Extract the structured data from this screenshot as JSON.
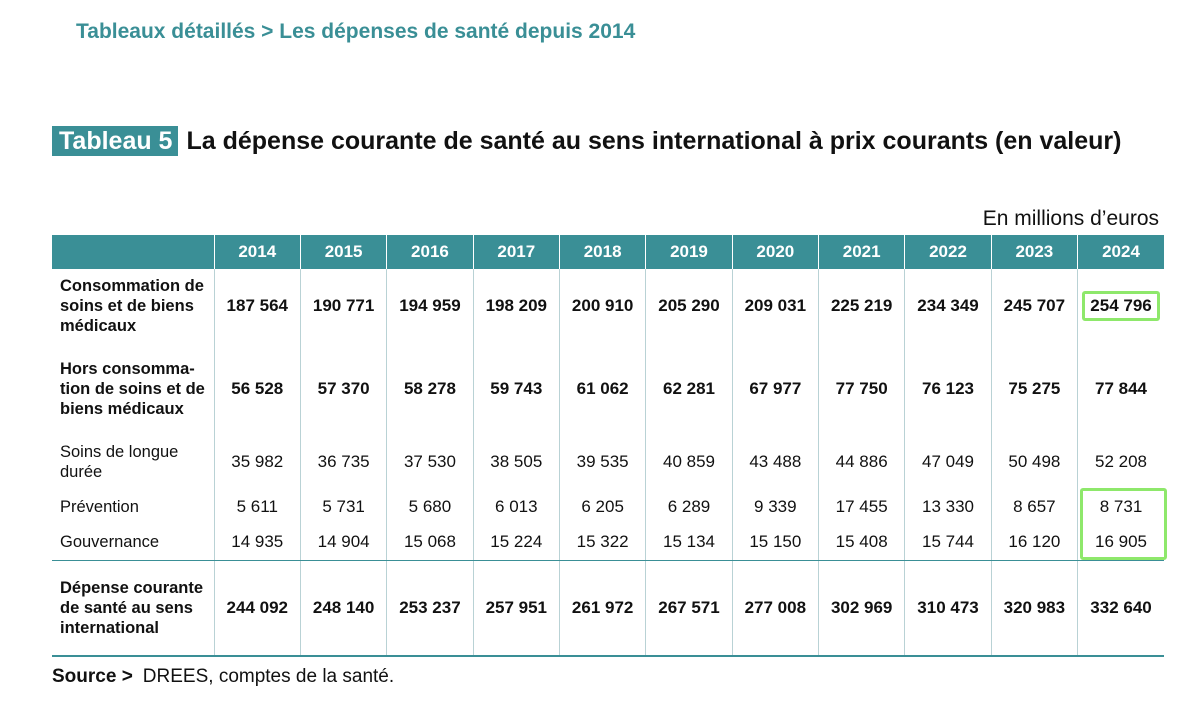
{
  "breadcrumb": "Tableaux détaillés > Les dépenses de santé depuis 2014",
  "title": {
    "badge": "Tableau 5",
    "text": "La dépense courante de santé au sens international à prix courants (en valeur)"
  },
  "unit": "En millions d’euros",
  "table": {
    "years": [
      "2014",
      "2015",
      "2016",
      "2017",
      "2018",
      "2019",
      "2020",
      "2021",
      "2022",
      "2023",
      "2024"
    ],
    "rows": [
      {
        "label": "Consommation de soins et de biens médicaux",
        "values": [
          "187 564",
          "190 771",
          "194 959",
          "198 209",
          "200 910",
          "205 290",
          "209 031",
          "225 219",
          "234 349",
          "245 707",
          "254 796"
        ]
      },
      {
        "label": "Hors consomma­tion de soins et de biens médicaux",
        "values": [
          "56 528",
          "57 370",
          "58 278",
          "59 743",
          "61 062",
          "62 281",
          "67 977",
          "77 750",
          "76 123",
          "75 275",
          "77 844"
        ]
      },
      {
        "label": "Soins de longue durée",
        "values": [
          "35 982",
          "36 735",
          "37 530",
          "38 505",
          "39 535",
          "40 859",
          "43 488",
          "44 886",
          "47 049",
          "50 498",
          "52 208"
        ]
      },
      {
        "label": "Prévention",
        "values": [
          "5 611",
          "5 731",
          "5 680",
          "6 013",
          "6 205",
          "6 289",
          "9 339",
          "17 455",
          "13 330",
          "8 657",
          "8 731"
        ]
      },
      {
        "label": "Gouvernance",
        "values": [
          "14 935",
          "14 904",
          "15 068",
          "15 224",
          "15 322",
          "15 134",
          "15 150",
          "15 408",
          "15 744",
          "16 120",
          "16 905"
        ]
      },
      {
        "label": "Dépense cou­rante de santé au sens international",
        "values": [
          "244 092",
          "248 140",
          "253 237",
          "257 951",
          "261 972",
          "267 571",
          "277 008",
          "302 969",
          "310 473",
          "320 983",
          "332 640"
        ]
      }
    ]
  },
  "source": {
    "label": "Source >",
    "text": "DREES, comptes de la santé."
  },
  "highlight_color": "#8ee86b",
  "accent_color": "#3a8f96"
}
